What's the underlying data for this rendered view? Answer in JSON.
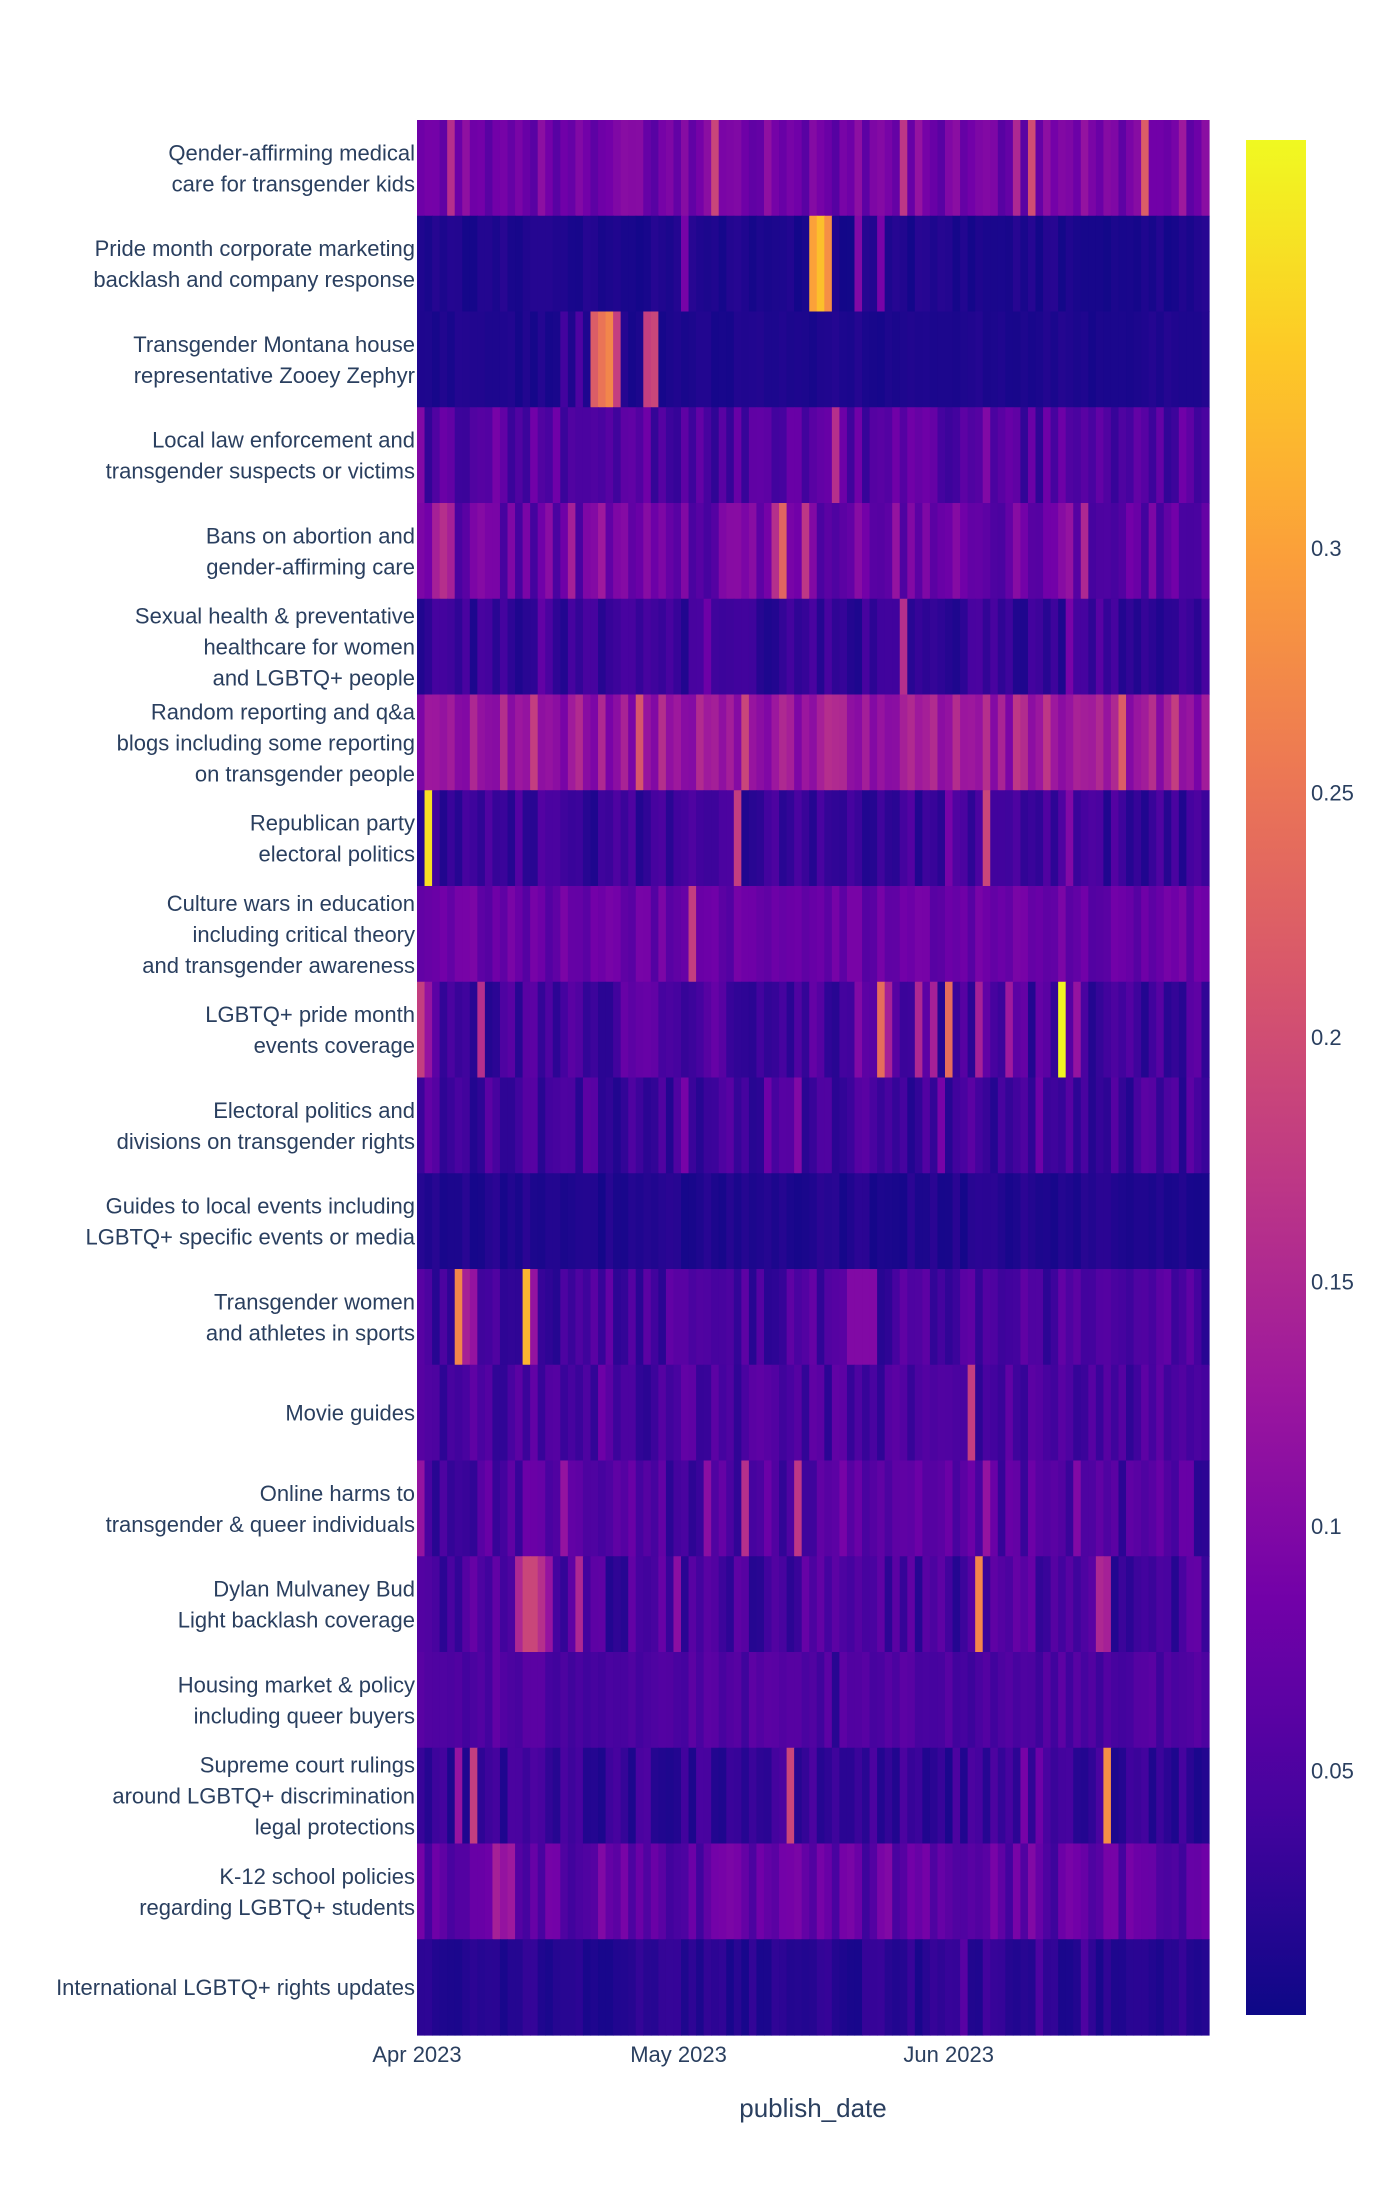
{
  "chart_data": {
    "type": "heatmap",
    "xlabel": "publish_date",
    "x_range": [
      "2023-04-01",
      "2023-06-30"
    ],
    "x_ticks": [
      {
        "date": "2023-04-01",
        "label": "Apr 2023"
      },
      {
        "date": "2023-05-01",
        "label": "May 2023"
      },
      {
        "date": "2023-06-01",
        "label": "Jun 2023"
      }
    ],
    "colorscale": [
      "#0d0887",
      "#46039f",
      "#7201a8",
      "#9c179e",
      "#bd3786",
      "#d8576b",
      "#ed7953",
      "#fb9f3a",
      "#fdca26",
      "#f0f921"
    ],
    "zmin": 0.0,
    "zmax": 0.3835,
    "colorbar_ticks": [
      0.05,
      0.1,
      0.15,
      0.2,
      0.25,
      0.3
    ],
    "colorbar_tick_labels": [
      "0.05",
      "0.1",
      "0.15",
      "0.2",
      "0.25",
      "0.3"
    ],
    "topics": [
      {
        "lines": [
          "Qender-affirming medical",
          "care for transgender kids"
        ],
        "base": 0.085,
        "spread": 0.03,
        "peaks": [
          [
            4,
            0.16
          ],
          [
            39,
            0.19
          ],
          [
            64,
            0.17
          ],
          [
            66,
            0.12
          ],
          [
            79,
            0.15
          ],
          [
            81,
            0.2
          ],
          [
            88,
            0.12
          ],
          [
            96,
            0.22
          ],
          [
            101,
            0.13
          ]
        ]
      },
      {
        "lines": [
          "Pride month corporate marketing",
          "backlash and company response"
        ],
        "base": 0.012,
        "spread": 0.008,
        "peaks": [
          [
            35,
            0.09
          ],
          [
            52,
            0.3
          ],
          [
            53,
            0.33
          ],
          [
            54,
            0.28
          ],
          [
            58,
            0.1
          ],
          [
            61,
            0.09
          ]
        ]
      },
      {
        "lines": [
          "Transgender Montana house",
          "representative Zooey Zephyr"
        ],
        "base": 0.012,
        "spread": 0.006,
        "peaks": [
          [
            23,
            0.22
          ],
          [
            24,
            0.25
          ],
          [
            25,
            0.27
          ],
          [
            26,
            0.18
          ],
          [
            30,
            0.18
          ],
          [
            31,
            0.19
          ],
          [
            19,
            0.04
          ],
          [
            21,
            0.05
          ]
        ]
      },
      {
        "lines": [
          "Local law enforcement and",
          "transgender suspects or victims"
        ],
        "base": 0.055,
        "spread": 0.03,
        "peaks": [
          [
            55,
            0.16
          ],
          [
            0,
            0.1
          ],
          [
            10,
            0.09
          ],
          [
            75,
            0.1
          ],
          [
            85,
            0.08
          ]
        ]
      },
      {
        "lines": [
          "Bans on abortion and",
          "gender-affirming care"
        ],
        "base": 0.075,
        "spread": 0.035,
        "peaks": [
          [
            2,
            0.14
          ],
          [
            3,
            0.16
          ],
          [
            4,
            0.14
          ],
          [
            20,
            0.14
          ],
          [
            24,
            0.13
          ],
          [
            47,
            0.16
          ],
          [
            48,
            0.23
          ],
          [
            51,
            0.17
          ],
          [
            63,
            0.12
          ],
          [
            86,
            0.12
          ],
          [
            88,
            0.15
          ]
        ]
      },
      {
        "lines": [
          "Sexual health & preventative",
          "healthcare for women",
          "and LGBTQ+ people"
        ],
        "base": 0.03,
        "spread": 0.018,
        "peaks": [
          [
            64,
            0.16
          ],
          [
            38,
            0.08
          ],
          [
            16,
            0.07
          ],
          [
            86,
            0.09
          ],
          [
            90,
            0.06
          ]
        ]
      },
      {
        "lines": [
          "Random reporting and q&a",
          "blogs including some reporting",
          "on transgender people"
        ],
        "base": 0.125,
        "spread": 0.035,
        "peaks": [
          [
            15,
            0.18
          ],
          [
            29,
            0.21
          ],
          [
            43,
            0.19
          ],
          [
            56,
            0.15
          ],
          [
            79,
            0.17
          ],
          [
            83,
            0.17
          ],
          [
            93,
            0.22
          ],
          [
            97,
            0.16
          ],
          [
            100,
            0.18
          ],
          [
            7,
            0.15
          ]
        ]
      },
      {
        "lines": [
          "Republican party",
          "electoral politics"
        ],
        "base": 0.035,
        "spread": 0.022,
        "peaks": [
          [
            1,
            0.36
          ],
          [
            42,
            0.18
          ],
          [
            70,
            0.09
          ],
          [
            75,
            0.19
          ],
          [
            86,
            0.1
          ],
          [
            89,
            0.05
          ]
        ]
      },
      {
        "lines": [
          "Culture wars in education",
          "including critical theory",
          "and transgender awareness"
        ],
        "base": 0.075,
        "spread": 0.02,
        "peaks": [
          [
            36,
            0.18
          ],
          [
            6,
            0.09
          ],
          [
            15,
            0.09
          ],
          [
            50,
            0.08
          ],
          [
            80,
            0.09
          ]
        ]
      },
      {
        "lines": [
          "LGBTQ+ pride month",
          "events coverage"
        ],
        "base": 0.045,
        "spread": 0.03,
        "peaks": [
          [
            0,
            0.18
          ],
          [
            1,
            0.12
          ],
          [
            8,
            0.16
          ],
          [
            61,
            0.24
          ],
          [
            62,
            0.14
          ],
          [
            66,
            0.15
          ],
          [
            68,
            0.14
          ],
          [
            70,
            0.24
          ],
          [
            74,
            0.14
          ],
          [
            78,
            0.13
          ],
          [
            85,
            0.38
          ],
          [
            87,
            0.12
          ],
          [
            58,
            0.1
          ]
        ]
      },
      {
        "lines": [
          "Electoral politics and",
          "divisions on transgender rights"
        ],
        "base": 0.04,
        "spread": 0.025,
        "peaks": [
          [
            50,
            0.1
          ],
          [
            69,
            0.09
          ],
          [
            82,
            0.08
          ],
          [
            35,
            0.09
          ],
          [
            46,
            0.08
          ],
          [
            1,
            0.07
          ]
        ]
      },
      {
        "lines": [
          "Guides to local events including",
          "LGBTQ+ specific events or media"
        ],
        "base": 0.014,
        "spread": 0.009,
        "peaks": []
      },
      {
        "lines": [
          "Transgender women",
          "and athletes in sports"
        ],
        "base": 0.045,
        "spread": 0.028,
        "peaks": [
          [
            5,
            0.27
          ],
          [
            6,
            0.14
          ],
          [
            7,
            0.12
          ],
          [
            14,
            0.32
          ],
          [
            15,
            0.12
          ],
          [
            57,
            0.1
          ],
          [
            58,
            0.1
          ],
          [
            59,
            0.1
          ],
          [
            60,
            0.1
          ]
        ]
      },
      {
        "lines": [
          "Movie guides"
        ],
        "base": 0.045,
        "spread": 0.025,
        "peaks": [
          [
            73,
            0.18
          ],
          [
            24,
            0.08
          ],
          [
            15,
            0.07
          ],
          [
            85,
            0.06
          ]
        ]
      },
      {
        "lines": [
          "Online harms to",
          "transgender & queer individuals"
        ],
        "base": 0.05,
        "spread": 0.03,
        "peaks": [
          [
            0,
            0.12
          ],
          [
            19,
            0.12
          ],
          [
            38,
            0.11
          ],
          [
            43,
            0.16
          ],
          [
            50,
            0.17
          ],
          [
            56,
            0.09
          ],
          [
            75,
            0.12
          ],
          [
            87,
            0.1
          ]
        ]
      },
      {
        "lines": [
          "Dylan Mulvaney Bud",
          "Light backlash coverage"
        ],
        "base": 0.045,
        "spread": 0.03,
        "peaks": [
          [
            13,
            0.15
          ],
          [
            14,
            0.19
          ],
          [
            15,
            0.19
          ],
          [
            16,
            0.16
          ],
          [
            17,
            0.12
          ],
          [
            21,
            0.15
          ],
          [
            74,
            0.27
          ],
          [
            90,
            0.15
          ],
          [
            91,
            0.14
          ],
          [
            34,
            0.11
          ]
        ]
      },
      {
        "lines": [
          "Housing market & policy",
          "including queer buyers"
        ],
        "base": 0.05,
        "spread": 0.015,
        "peaks": [
          [
            55,
            0.02
          ],
          [
            10,
            0.07
          ],
          [
            70,
            0.06
          ]
        ]
      },
      {
        "lines": [
          "Supreme court rulings",
          "around LGBTQ+ discrimination",
          "legal protections"
        ],
        "base": 0.03,
        "spread": 0.02,
        "peaks": [
          [
            5,
            0.12
          ],
          [
            7,
            0.18
          ],
          [
            49,
            0.19
          ],
          [
            91,
            0.28
          ],
          [
            80,
            0.09
          ],
          [
            82,
            0.08
          ]
        ]
      },
      {
        "lines": [
          "K-12 school policies",
          "regarding LGBTQ+ students"
        ],
        "base": 0.065,
        "spread": 0.03,
        "peaks": [
          [
            10,
            0.14
          ],
          [
            11,
            0.12
          ],
          [
            12,
            0.13
          ],
          [
            24,
            0.1
          ],
          [
            42,
            0.09
          ],
          [
            62,
            0.1
          ],
          [
            81,
            0.1
          ]
        ]
      },
      {
        "lines": [
          "International LGBTQ+ rights updates"
        ],
        "base": 0.02,
        "spread": 0.012,
        "peaks": [
          [
            72,
            0.06
          ],
          [
            75,
            0.04
          ],
          [
            82,
            0.05
          ],
          [
            88,
            0.05
          ]
        ]
      }
    ]
  }
}
